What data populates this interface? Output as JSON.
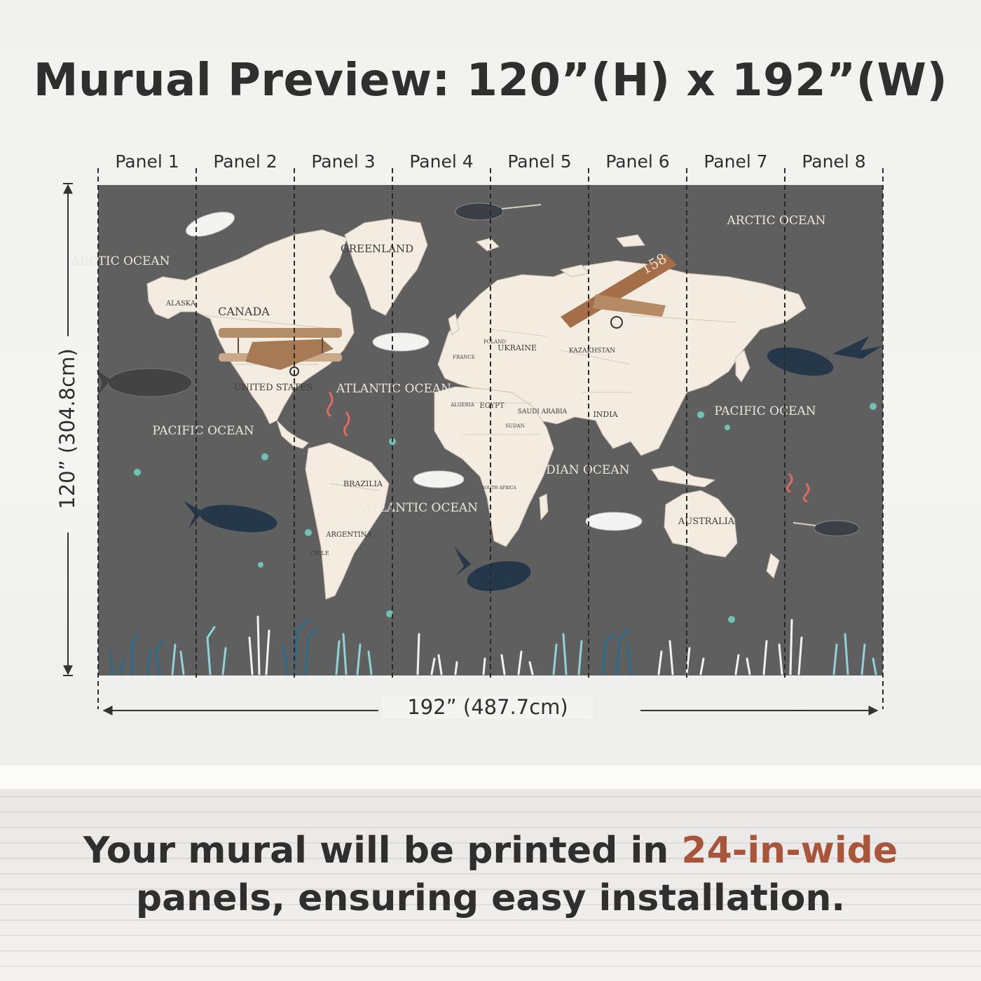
{
  "title": "Murual Preview: 120”(H) x 192”(W)",
  "panels": [
    "Panel 1",
    "Panel 2",
    "Panel 3",
    "Panel 4",
    "Panel 5",
    "Panel 6",
    "Panel 7",
    "Panel 8"
  ],
  "dimensions": {
    "height_label": "120” (304.8cm)",
    "width_label": "192” (487.7cm)"
  },
  "map_labels": {
    "arctic_ocean": "ARCTIC OCEAN",
    "greenland": "GREENLAND",
    "alaska": "ALASKA",
    "canada": "CANADA",
    "united_states": "UNITED STATES",
    "pacific_ocean": "PACIFIC OCEAN",
    "atlantic_ocean": "ATLANTIC OCEAN",
    "brazilia": "BRAZILIA",
    "argentina": "ARGENTINA",
    "chile": "CHILE",
    "ukraine": "UKRAINE",
    "poland": "POLAND",
    "france": "FRANCE",
    "kazakhstan": "KAZAKHSTAN",
    "algeria": "ALGERIA",
    "egypt": "EGYPT",
    "saudi_arabia": "SAUDI ARABIA",
    "sudan": "SUDAN",
    "india": "INDIA",
    "indian_ocean": "INDIAN OCEAN",
    "south_africa": "SOUTH AFRICA",
    "australia": "AUSTRALIA",
    "plane_number": "158"
  },
  "tagline": {
    "part1": "Your mural will be printed in ",
    "accent": "24-in-wide",
    "part2": "panels, ensuring easy installation."
  },
  "colors": {
    "map_background": "#5f5f5f",
    "land": "#f4ece0",
    "accent_text": "#a8553a"
  }
}
